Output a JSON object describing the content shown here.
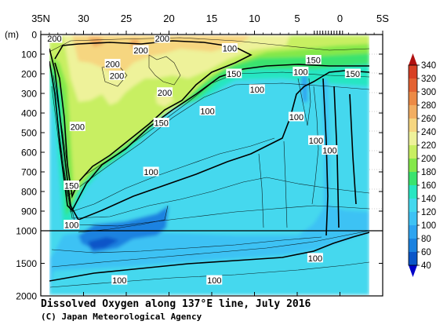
{
  "chart_data": {
    "type": "heatmap",
    "title": "Dissolved Oxygen along 137°E line, July 2016",
    "credit": "(C) Japan Meteorological Agency",
    "ylabel": "(m)",
    "x_ticks": [
      "35N",
      "30",
      "25",
      "20",
      "15",
      "10",
      "5",
      "0",
      "5S"
    ],
    "x_tick_values": [
      35,
      30,
      25,
      20,
      15,
      10,
      5,
      0,
      -5
    ],
    "xlim": [
      35,
      -5
    ],
    "data_xlim": [
      34,
      -2.5
    ],
    "y_ticks_upper": [
      "0",
      "100",
      "200",
      "300",
      "400",
      "500",
      "600",
      "700",
      "800",
      "900",
      "1000"
    ],
    "y_ticks_lower": [
      "1500",
      "2000"
    ],
    "ylim": [
      0,
      2000
    ],
    "y_break": 1000,
    "colorbar": {
      "ticks": [
        "40",
        "60",
        "80",
        "100",
        "120",
        "140",
        "160",
        "180",
        "200",
        "220",
        "240",
        "260",
        "280",
        "300",
        "320",
        "340"
      ],
      "colors": [
        "#0a55c8",
        "#1a82e0",
        "#2ea4f0",
        "#3ec2f4",
        "#44d8ee",
        "#28e6c2",
        "#3ae36e",
        "#84e84a",
        "#c8ef62",
        "#eef29a",
        "#f6d680",
        "#f2ae62",
        "#ec8a46",
        "#e46232",
        "#d84024",
        "#c42818"
      ],
      "low_color": "#0000c8",
      "high_color": "#b01010"
    },
    "contour_labels": [
      {
        "text": "200",
        "x": 33.4,
        "depth": 20
      },
      {
        "text": "200",
        "x": 20.8,
        "depth": 20
      },
      {
        "text": "200",
        "x": 23.3,
        "depth": 80
      },
      {
        "text": "200",
        "x": 26.6,
        "depth": 150
      },
      {
        "text": "200",
        "x": 26.1,
        "depth": 210
      },
      {
        "text": "200",
        "x": 20.5,
        "depth": 295
      },
      {
        "text": "200",
        "x": 30.7,
        "depth": 470
      },
      {
        "text": "100",
        "x": 12.9,
        "depth": 70
      },
      {
        "text": "150",
        "x": 3.1,
        "depth": 130
      },
      {
        "text": "150",
        "x": 12.4,
        "depth": 200
      },
      {
        "text": "100",
        "x": 4.6,
        "depth": 190
      },
      {
        "text": "100",
        "x": 9.7,
        "depth": 280
      },
      {
        "text": "150",
        "x": -1.5,
        "depth": 200
      },
      {
        "text": "100",
        "x": 15.5,
        "depth": 390
      },
      {
        "text": "150",
        "x": 20.9,
        "depth": 450
      },
      {
        "text": "100",
        "x": 5.1,
        "depth": 420
      },
      {
        "text": "100",
        "x": 2.8,
        "depth": 540
      },
      {
        "text": "100",
        "x": 1.2,
        "depth": 590
      },
      {
        "text": "100",
        "x": 22.1,
        "depth": 700
      },
      {
        "text": "150",
        "x": 31.4,
        "depth": 770
      },
      {
        "text": "100",
        "x": 31.4,
        "depth": 970
      },
      {
        "text": "100",
        "x": 2.9,
        "depth": 1420
      },
      {
        "text": "100",
        "x": 25.8,
        "depth": 1760
      },
      {
        "text": "100",
        "x": 14.7,
        "depth": 1760
      }
    ]
  }
}
